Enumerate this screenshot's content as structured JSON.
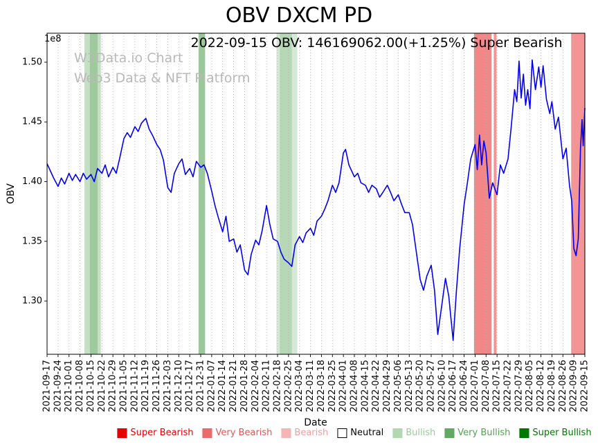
{
  "page": {
    "title": "OBV DXCM PD",
    "subtitle": "2022-09-15 OBV: 146169062.00(+1.25%) Super Bearish"
  },
  "watermark": {
    "line1": "W3Data.io Chart",
    "line2": "Web3 Data & NFT Platform"
  },
  "axes": {
    "x_label": "Date",
    "y_label": "OBV",
    "offset_label": "1e8"
  },
  "legend": {
    "items": [
      {
        "label": "Super Bearish",
        "color": "#e60000",
        "text_color": "#e60000",
        "border": "#e60000"
      },
      {
        "label": "Very Bearish",
        "color": "#ea6b6b",
        "text_color": "#e05555",
        "border": "#ea6b6b"
      },
      {
        "label": "Bearish",
        "color": "#f5b5b5",
        "text_color": "#eda0a0",
        "border": "#f5b5b5"
      },
      {
        "label": "Neutral",
        "color": "#ffffff",
        "text_color": "#000000",
        "border": "#000000"
      },
      {
        "label": "Bullish",
        "color": "#b2d8b2",
        "text_color": "#9cc99c",
        "border": "#b2d8b2"
      },
      {
        "label": "Very Bullish",
        "color": "#63a963",
        "text_color": "#55a055",
        "border": "#63a963"
      },
      {
        "label": "Super Bullish",
        "color": "#007800",
        "text_color": "#007800",
        "border": "#007800"
      }
    ]
  },
  "chart_data": {
    "type": "line",
    "title": "OBV DXCM PD",
    "subtitle": "2022-09-15 OBV: 146169062.00(+1.25%) Super Bearish",
    "xlabel": "Date",
    "ylabel": "OBV",
    "y_multiplier": "1e8",
    "ylim": [
      1.2554,
      1.5243
    ],
    "yticks": [
      1.3,
      1.35,
      1.4,
      1.45,
      1.5
    ],
    "grid": {
      "vertical": true,
      "style": "dotted"
    },
    "categories": [
      "2021-09-17",
      "2021-09-24",
      "2021-10-01",
      "2021-10-08",
      "2021-10-15",
      "2021-10-22",
      "2021-10-29",
      "2021-11-05",
      "2021-11-12",
      "2021-11-19",
      "2021-11-26",
      "2021-12-03",
      "2021-12-10",
      "2021-12-17",
      "2021-12-31",
      "2022-01-07",
      "2022-01-14",
      "2022-01-21",
      "2022-01-28",
      "2022-02-04",
      "2022-02-11",
      "2022-02-18",
      "2022-02-25",
      "2022-03-04",
      "2022-03-11",
      "2022-03-18",
      "2022-03-25",
      "2022-04-01",
      "2022-04-08",
      "2022-04-15",
      "2022-04-22",
      "2022-04-29",
      "2022-05-06",
      "2022-05-13",
      "2022-05-20",
      "2022-05-27",
      "2022-06-10",
      "2022-06-17",
      "2022-06-24",
      "2022-07-01",
      "2022-07-08",
      "2022-07-15",
      "2022-07-22",
      "2022-07-29",
      "2022-08-05",
      "2022-08-12",
      "2022-08-19",
      "2022-08-26",
      "2022-09-09",
      "2022-09-15"
    ],
    "series": [
      {
        "name": "OBV",
        "color": "#0000ee",
        "x_unit": "tick_index",
        "y_unit": "1e8",
        "points": [
          [
            0,
            1.415
          ],
          [
            0.3,
            1.409
          ],
          [
            0.6,
            1.403
          ],
          [
            1,
            1.396
          ],
          [
            1.3,
            1.403
          ],
          [
            1.6,
            1.398
          ],
          [
            2,
            1.407
          ],
          [
            2.3,
            1.401
          ],
          [
            2.6,
            1.406
          ],
          [
            3,
            1.4
          ],
          [
            3.3,
            1.407
          ],
          [
            3.6,
            1.402
          ],
          [
            4,
            1.406
          ],
          [
            4.3,
            1.4
          ],
          [
            4.6,
            1.411
          ],
          [
            5,
            1.407
          ],
          [
            5.3,
            1.414
          ],
          [
            5.6,
            1.404
          ],
          [
            6,
            1.412
          ],
          [
            6.3,
            1.407
          ],
          [
            6.6,
            1.419
          ],
          [
            7,
            1.436
          ],
          [
            7.3,
            1.441
          ],
          [
            7.6,
            1.437
          ],
          [
            8,
            1.446
          ],
          [
            8.3,
            1.442
          ],
          [
            8.6,
            1.449
          ],
          [
            9,
            1.453
          ],
          [
            9.3,
            1.444
          ],
          [
            9.6,
            1.439
          ],
          [
            10,
            1.431
          ],
          [
            10.3,
            1.427
          ],
          [
            10.6,
            1.418
          ],
          [
            11,
            1.395
          ],
          [
            11.3,
            1.391
          ],
          [
            11.6,
            1.407
          ],
          [
            12,
            1.415
          ],
          [
            12.3,
            1.419
          ],
          [
            12.6,
            1.406
          ],
          [
            13,
            1.411
          ],
          [
            13.3,
            1.404
          ],
          [
            13.6,
            1.417
          ],
          [
            14,
            1.412
          ],
          [
            14.3,
            1.414
          ],
          [
            14.6,
            1.407
          ],
          [
            15,
            1.392
          ],
          [
            15.3,
            1.38
          ],
          [
            15.6,
            1.37
          ],
          [
            16,
            1.358
          ],
          [
            16.3,
            1.371
          ],
          [
            16.6,
            1.35
          ],
          [
            17,
            1.352
          ],
          [
            17.3,
            1.341
          ],
          [
            17.6,
            1.347
          ],
          [
            18,
            1.326
          ],
          [
            18.3,
            1.322
          ],
          [
            18.6,
            1.339
          ],
          [
            19,
            1.351
          ],
          [
            19.3,
            1.347
          ],
          [
            19.6,
            1.359
          ],
          [
            20,
            1.38
          ],
          [
            20.3,
            1.364
          ],
          [
            20.6,
            1.352
          ],
          [
            21,
            1.35
          ],
          [
            21.3,
            1.341
          ],
          [
            21.6,
            1.335
          ],
          [
            22,
            1.332
          ],
          [
            22.3,
            1.329
          ],
          [
            22.6,
            1.347
          ],
          [
            23,
            1.354
          ],
          [
            23.3,
            1.349
          ],
          [
            23.6,
            1.357
          ],
          [
            24,
            1.361
          ],
          [
            24.3,
            1.355
          ],
          [
            24.6,
            1.367
          ],
          [
            25,
            1.371
          ],
          [
            25.3,
            1.377
          ],
          [
            25.6,
            1.384
          ],
          [
            26,
            1.397
          ],
          [
            26.3,
            1.391
          ],
          [
            26.6,
            1.399
          ],
          [
            27,
            1.424
          ],
          [
            27.2,
            1.427
          ],
          [
            27.5,
            1.414
          ],
          [
            28,
            1.404
          ],
          [
            28.3,
            1.407
          ],
          [
            28.6,
            1.399
          ],
          [
            29,
            1.397
          ],
          [
            29.3,
            1.391
          ],
          [
            29.6,
            1.397
          ],
          [
            30,
            1.394
          ],
          [
            30.3,
            1.387
          ],
          [
            30.6,
            1.391
          ],
          [
            31,
            1.397
          ],
          [
            31.3,
            1.391
          ],
          [
            31.6,
            1.384
          ],
          [
            32,
            1.389
          ],
          [
            32.3,
            1.381
          ],
          [
            32.6,
            1.374
          ],
          [
            33,
            1.374
          ],
          [
            33.3,
            1.364
          ],
          [
            33.6,
            1.344
          ],
          [
            34,
            1.318
          ],
          [
            34.3,
            1.309
          ],
          [
            34.6,
            1.321
          ],
          [
            35,
            1.33
          ],
          [
            35.3,
            1.309
          ],
          [
            35.6,
            1.272
          ],
          [
            36,
            1.299
          ],
          [
            36.3,
            1.319
          ],
          [
            36.6,
            1.304
          ],
          [
            37,
            1.267
          ],
          [
            37.3,
            1.309
          ],
          [
            37.6,
            1.344
          ],
          [
            38,
            1.381
          ],
          [
            38.3,
            1.399
          ],
          [
            38.6,
            1.419
          ],
          [
            39,
            1.431
          ],
          [
            39.2,
            1.41
          ],
          [
            39.4,
            1.439
          ],
          [
            39.6,
            1.414
          ],
          [
            39.8,
            1.434
          ],
          [
            40,
            1.424
          ],
          [
            40.3,
            1.386
          ],
          [
            40.6,
            1.399
          ],
          [
            41,
            1.389
          ],
          [
            41.3,
            1.414
          ],
          [
            41.6,
            1.407
          ],
          [
            42,
            1.419
          ],
          [
            42.3,
            1.447
          ],
          [
            42.6,
            1.477
          ],
          [
            42.8,
            1.467
          ],
          [
            43,
            1.501
          ],
          [
            43.2,
            1.47
          ],
          [
            43.4,
            1.49
          ],
          [
            43.6,
            1.464
          ],
          [
            43.8,
            1.477
          ],
          [
            44,
            1.461
          ],
          [
            44.2,
            1.502
          ],
          [
            44.5,
            1.477
          ],
          [
            44.8,
            1.496
          ],
          [
            45,
            1.479
          ],
          [
            45.2,
            1.497
          ],
          [
            45.5,
            1.469
          ],
          [
            45.8,
            1.457
          ],
          [
            46,
            1.467
          ],
          [
            46.3,
            1.444
          ],
          [
            46.6,
            1.454
          ],
          [
            47,
            1.419
          ],
          [
            47.3,
            1.428
          ],
          [
            47.6,
            1.397
          ],
          [
            47.8,
            1.384
          ],
          [
            48,
            1.344
          ],
          [
            48.2,
            1.338
          ],
          [
            48.4,
            1.352
          ],
          [
            48.6,
            1.428
          ],
          [
            48.75,
            1.452
          ],
          [
            48.85,
            1.43
          ],
          [
            49,
            1.4617
          ]
        ]
      }
    ],
    "bands": [
      {
        "from": 3.4,
        "to": 4.9,
        "color": "rgba(70,155,70,0.32)",
        "signal": "bullish"
      },
      {
        "from": 3.9,
        "to": 4.6,
        "color": "rgba(70,155,70,0.30)",
        "signal": "very-bullish"
      },
      {
        "from": 13.8,
        "to": 14.4,
        "color": "rgba(70,155,70,0.55)",
        "signal": "very-bullish"
      },
      {
        "from": 20.9,
        "to": 22.8,
        "color": "rgba(70,155,70,0.22)",
        "signal": "bullish"
      },
      {
        "from": 21.2,
        "to": 22.3,
        "color": "rgba(70,155,70,0.22)",
        "signal": "bullish"
      },
      {
        "from": 38.9,
        "to": 40.5,
        "color": "rgba(235,60,60,0.62)",
        "signal": "very-bearish"
      },
      {
        "from": 40.7,
        "to": 40.95,
        "color": "rgba(235,60,60,0.55)",
        "signal": "very-bearish"
      },
      {
        "from": 47.75,
        "to": 49.0,
        "color": "rgba(235,60,60,0.55)",
        "signal": "very-bearish"
      }
    ],
    "last_point": {
      "date": "2022-09-15",
      "obv": 146169062.0,
      "change_pct": 1.25,
      "signal": "Super Bearish"
    }
  }
}
